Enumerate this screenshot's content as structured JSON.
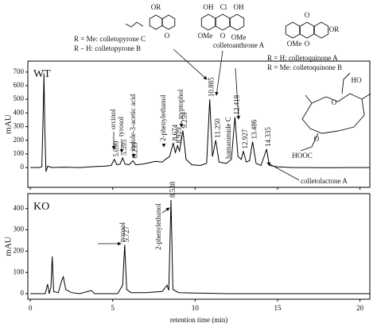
{
  "chart_data": [
    {
      "type": "line",
      "panel_label": "WT",
      "y_label": "mAU",
      "color": "#000000",
      "xlim": [
        -0.15,
        20.6
      ],
      "xticks": [
        0,
        5,
        10,
        15,
        20
      ],
      "ylim": [
        -145,
        780
      ],
      "yticks": [
        0,
        100,
        200,
        300,
        400,
        500,
        600,
        700
      ],
      "x": [
        0,
        0.5,
        0.7,
        0.78,
        0.83,
        0.88,
        0.95,
        1.05,
        1.3,
        2,
        3,
        4,
        4.5,
        4.9,
        5.1,
        5.25,
        5.45,
        5.6,
        5.75,
        6.0,
        6.23,
        6.4,
        6.8,
        7.2,
        7.6,
        8.0,
        8.2,
        8.45,
        8.67,
        8.8,
        8.93,
        9.05,
        9.26,
        9.45,
        9.8,
        10.3,
        10.7,
        10.885,
        11.05,
        11.25,
        11.45,
        11.9,
        12.2,
        12.418,
        12.6,
        12.8,
        12.927,
        13.1,
        13.3,
        13.486,
        13.7,
        14.0,
        14.335,
        14.5,
        15,
        16,
        17,
        18,
        19,
        20,
        20.6
      ],
      "values": [
        0,
        0,
        5,
        400,
        690,
        300,
        -30,
        10,
        0,
        3,
        0,
        8,
        10,
        15,
        60,
        20,
        25,
        70,
        25,
        20,
        50,
        20,
        25,
        35,
        45,
        40,
        60,
        80,
        180,
        110,
        160,
        120,
        270,
        60,
        20,
        15,
        30,
        500,
        80,
        200,
        40,
        30,
        60,
        370,
        80,
        60,
        120,
        40,
        50,
        190,
        30,
        15,
        135,
        15,
        5,
        0,
        0,
        -2,
        0,
        0,
        0
      ],
      "peaks": [
        5.099,
        5.595,
        6.233,
        8.674,
        8.929,
        9.259,
        10.885,
        {
          "value": 11.25,
          "label": "11.250"
        },
        12.418,
        12.927,
        13.486,
        14.335
      ],
      "compounds": [
        "orcinol",
        "tyrosol",
        "indole-3-acetic acid",
        "2-phenylethanol",
        "tryptophol",
        "hamanimide C",
        "colletolactone A"
      ],
      "structure_captions": [
        "R = Me: colletopyrone C",
        "R – H: colletopyrone B",
        "colletoanthrone A",
        "R = H: colletoquinone A",
        "R = Me: colletoquinone B"
      ],
      "structure_atoms": [
        "OR",
        "O",
        "OH",
        "Cl",
        "OH",
        "OMe",
        "OMe",
        "O",
        "O",
        "OR",
        "OMe",
        "O",
        "O",
        "O",
        "HOOC",
        "HO"
      ]
    },
    {
      "type": "line",
      "panel_label": "KO",
      "y_label": "mAU",
      "x_label": "retention time (min)",
      "color": "#000000",
      "xlim": [
        -0.15,
        20.6
      ],
      "xticks": [
        0,
        5,
        10,
        15,
        20
      ],
      "ylim": [
        -26,
        470
      ],
      "yticks": [
        0,
        100,
        200,
        300,
        400
      ],
      "x": [
        0,
        0.9,
        1.05,
        1.15,
        1.25,
        1.33,
        1.42,
        1.7,
        1.9,
        2.0,
        2.15,
        2.5,
        3,
        3.7,
        3.9,
        5.3,
        5.6,
        5.727,
        5.85,
        6.1,
        7,
        8.0,
        8.3,
        8.4,
        8.538,
        8.65,
        9.0,
        10,
        12,
        15,
        18,
        20.6
      ],
      "values": [
        0,
        0,
        45,
        0,
        30,
        175,
        10,
        5,
        60,
        80,
        20,
        5,
        0,
        15,
        0,
        0,
        40,
        230,
        20,
        5,
        5,
        10,
        40,
        15,
        440,
        20,
        5,
        3,
        0,
        0,
        0,
        0
      ],
      "peaks": [
        5.727,
        8.538
      ],
      "compounds": [
        "tyrosol",
        "2-phenylethanol"
      ]
    }
  ]
}
